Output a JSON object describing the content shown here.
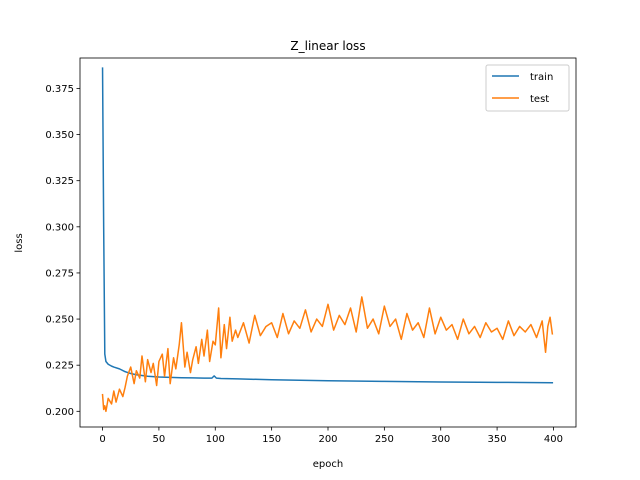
{
  "chart_data": {
    "type": "line",
    "title": "Z_linear loss",
    "xlabel": "epoch",
    "ylabel": "loss",
    "xlim": [
      -20,
      420
    ],
    "ylim": [
      0.1915,
      0.3915
    ],
    "xticks": [
      0,
      50,
      100,
      150,
      200,
      250,
      300,
      350,
      400
    ],
    "yticks": [
      0.2,
      0.225,
      0.25,
      0.275,
      0.3,
      0.325,
      0.35,
      0.375
    ],
    "ytick_labels": [
      "0.200",
      "0.225",
      "0.250",
      "0.275",
      "0.300",
      "0.325",
      "0.350",
      "0.375"
    ],
    "legend": {
      "location": "top-right"
    },
    "series": [
      {
        "name": "train",
        "color": "#1f77b4",
        "x": [
          0,
          1,
          2,
          3,
          5,
          8,
          10,
          15,
          20,
          25,
          30,
          40,
          50,
          60,
          70,
          80,
          90,
          97,
          99,
          101,
          105,
          120,
          150,
          200,
          250,
          300,
          350,
          399
        ],
        "y": [
          0.386,
          0.3,
          0.231,
          0.227,
          0.2255,
          0.2245,
          0.224,
          0.223,
          0.2215,
          0.2205,
          0.2198,
          0.219,
          0.2186,
          0.2184,
          0.2182,
          0.2181,
          0.218,
          0.218,
          0.2192,
          0.218,
          0.2178,
          0.2176,
          0.2171,
          0.2166,
          0.2162,
          0.2159,
          0.2157,
          0.2155
        ]
      },
      {
        "name": "test",
        "color": "#ff7f0e",
        "x": [
          0,
          1,
          2,
          3,
          5,
          8,
          10,
          12,
          15,
          18,
          20,
          22,
          25,
          28,
          30,
          33,
          35,
          38,
          40,
          43,
          45,
          48,
          50,
          53,
          55,
          58,
          60,
          63,
          65,
          68,
          70,
          73,
          75,
          78,
          80,
          83,
          85,
          88,
          90,
          93,
          95,
          98,
          100,
          103,
          105,
          108,
          110,
          113,
          115,
          118,
          120,
          125,
          130,
          135,
          140,
          145,
          150,
          155,
          160,
          165,
          170,
          175,
          180,
          185,
          190,
          195,
          200,
          205,
          210,
          215,
          220,
          225,
          230,
          235,
          240,
          245,
          250,
          255,
          260,
          265,
          270,
          275,
          280,
          285,
          290,
          295,
          300,
          305,
          310,
          315,
          320,
          325,
          330,
          335,
          340,
          345,
          350,
          355,
          360,
          365,
          370,
          375,
          380,
          385,
          390,
          393,
          395,
          397,
          399
        ],
        "y": [
          0.209,
          0.201,
          0.203,
          0.2,
          0.207,
          0.204,
          0.211,
          0.205,
          0.212,
          0.208,
          0.213,
          0.219,
          0.224,
          0.215,
          0.222,
          0.218,
          0.23,
          0.216,
          0.228,
          0.221,
          0.226,
          0.214,
          0.227,
          0.231,
          0.219,
          0.234,
          0.215,
          0.229,
          0.223,
          0.236,
          0.248,
          0.224,
          0.232,
          0.221,
          0.228,
          0.235,
          0.226,
          0.239,
          0.23,
          0.244,
          0.227,
          0.238,
          0.236,
          0.256,
          0.229,
          0.247,
          0.234,
          0.251,
          0.238,
          0.244,
          0.24,
          0.248,
          0.237,
          0.252,
          0.241,
          0.246,
          0.248,
          0.24,
          0.253,
          0.242,
          0.249,
          0.245,
          0.255,
          0.243,
          0.25,
          0.246,
          0.258,
          0.244,
          0.252,
          0.247,
          0.256,
          0.243,
          0.262,
          0.245,
          0.25,
          0.242,
          0.257,
          0.246,
          0.25,
          0.239,
          0.253,
          0.244,
          0.248,
          0.24,
          0.256,
          0.242,
          0.251,
          0.244,
          0.247,
          0.239,
          0.25,
          0.242,
          0.246,
          0.24,
          0.248,
          0.243,
          0.245,
          0.239,
          0.249,
          0.241,
          0.246,
          0.243,
          0.247,
          0.24,
          0.249,
          0.232,
          0.246,
          0.251,
          0.242
        ]
      }
    ]
  }
}
